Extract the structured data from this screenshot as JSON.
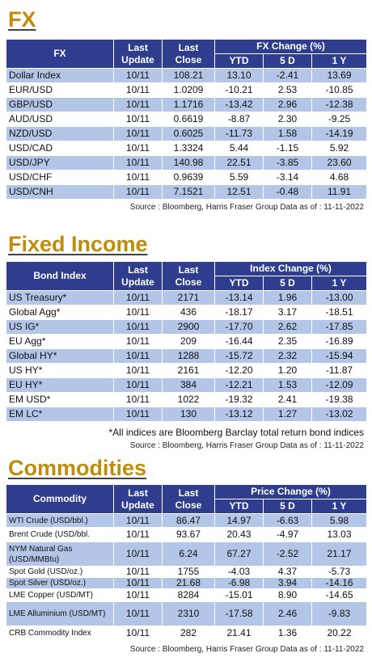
{
  "fx": {
    "title": "FX",
    "header": [
      "FX",
      "Last Update",
      "Last Close",
      "FX Change (%)"
    ],
    "subheader": [
      "YTD",
      "5 D",
      "1 Y"
    ],
    "rows": [
      [
        "Dollar Index",
        "10/11",
        "108.21",
        "13.10",
        "-2.41",
        "13.69"
      ],
      [
        "EUR/USD",
        "10/11",
        "1.0209",
        "-10.21",
        "2.53",
        "-10.85"
      ],
      [
        "GBP/USD",
        "10/11",
        "1.1716",
        "-13.42",
        "2.96",
        "-12.38"
      ],
      [
        "AUD/USD",
        "10/11",
        "0.6619",
        "-8.87",
        "2.30",
        "-9.25"
      ],
      [
        "NZD/USD",
        "10/11",
        "0.6025",
        "-11.73",
        "1.58",
        "-14.19"
      ],
      [
        "USD/CAD",
        "10/11",
        "1.3324",
        "5.44",
        "-1.15",
        "5.92"
      ],
      [
        "USD/JPY",
        "10/11",
        "140.98",
        "22.51",
        "-3.85",
        "23.60"
      ],
      [
        "USD/CHF",
        "10/11",
        "0.9639",
        "5.59",
        "-3.14",
        "4.68"
      ],
      [
        "USD/CNH",
        "10/11",
        "7.1521",
        "12.51",
        "-0.48",
        "11.91"
      ]
    ],
    "source": "Source : Bloomberg, Harris Fraser Group Data as of : 11-11-2022"
  },
  "fixed_income": {
    "title": "Fixed Income",
    "header": [
      "Bond Index",
      "Last Update",
      "Last Close",
      "Index Change (%)"
    ],
    "subheader": [
      "YTD",
      "5 D",
      "1 Y"
    ],
    "rows": [
      [
        "US Treasury*",
        "10/11",
        "2171",
        "-13.14",
        "1.96",
        "-13.00"
      ],
      [
        "Global Agg*",
        "10/11",
        "436",
        "-18.17",
        "3.17",
        "-18.51"
      ],
      [
        "US IG*",
        "10/11",
        "2900",
        "-17.70",
        "2.62",
        "-17.85"
      ],
      [
        "EU Agg*",
        "10/11",
        "209",
        "-16.44",
        "2.35",
        "-16.89"
      ],
      [
        "Global HY*",
        "10/11",
        "1288",
        "-15.72",
        "2.32",
        "-15.94"
      ],
      [
        "US HY*",
        "10/11",
        "2161",
        "-12.20",
        "1.20",
        "-11.87"
      ],
      [
        "EU HY*",
        "10/11",
        "384",
        "-12.21",
        "1.53",
        "-12.09"
      ],
      [
        "EM USD*",
        "10/11",
        "1022",
        "-19.32",
        "2.41",
        "-19.38"
      ],
      [
        "EM LC*",
        "10/11",
        "130",
        "-13.12",
        "1.27",
        "-13.02"
      ]
    ],
    "note": "*All indices are Bloomberg Barclay total return bond indices",
    "source": "Source : Bloomberg, Harris Fraser Group Data as of : 11-11-2022"
  },
  "commodities": {
    "title": "Commodities",
    "header": [
      "Commodity",
      "Last Update",
      "Last Close",
      "Price Change (%)"
    ],
    "subheader": [
      "YTD",
      "5 D",
      "1 Y"
    ],
    "rows": [
      [
        "WTI Crude (USD/bbl.)",
        "10/11",
        "86.47",
        "14.97",
        "-6.63",
        "5.98"
      ],
      [
        "Brent Crude (USD/bbl.",
        "10/11",
        "93.67",
        "20.43",
        "-4.97",
        "13.03"
      ],
      [
        "NYM Natural Gas (USD/MMBtu)",
        "10/11",
        "6.24",
        "67.27",
        "-2.52",
        "21.17"
      ],
      [
        "Spot Gold (USD/oz.)",
        "10/11",
        "1755",
        "-4.03",
        "4.37",
        "-5.73"
      ],
      [
        "Spot Silver  (USD/oz.)",
        "10/11",
        "21.68",
        "-6.98",
        "3.94",
        "-14.16"
      ],
      [
        "LME Copper  (USD/MT)",
        "10/11",
        "8284",
        "-15.01",
        "8.90",
        "-14.65"
      ],
      [
        "LME Alluminium (USD/MT)",
        "10/11",
        "2310",
        "-17.58",
        "2.46",
        "-9.83"
      ],
      [
        "CRB Commodity Index",
        "10/11",
        "282",
        "21.41",
        "1.36",
        "20.22"
      ]
    ],
    "source": "Source : Bloomberg, Harris Fraser Group Data as of : 11-11-2022"
  }
}
